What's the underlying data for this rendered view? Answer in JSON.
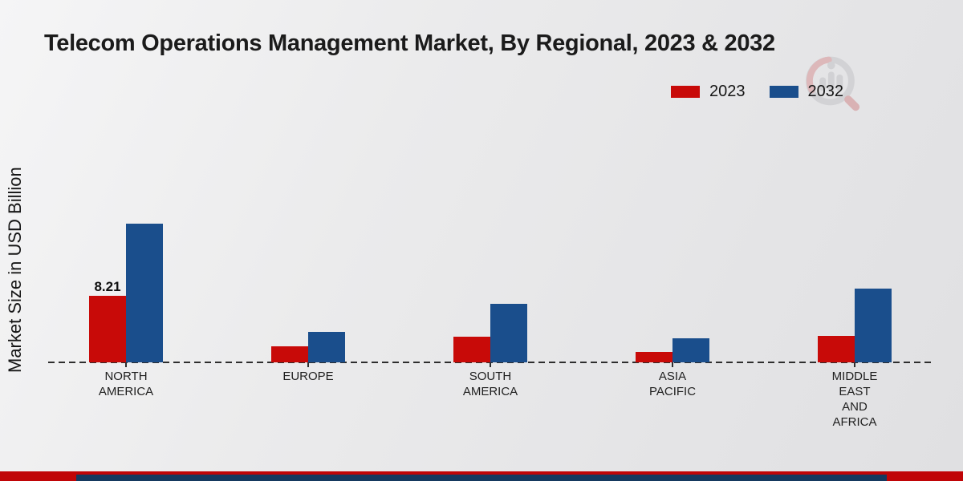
{
  "title": "Telecom Operations Management Market, By Regional, 2023 & 2032",
  "y_axis_label": "Market Size in USD Billion",
  "legend": {
    "items": [
      {
        "label": "2023",
        "color": "#c80a08"
      },
      {
        "label": "2032",
        "color": "#1a4e8c"
      }
    ]
  },
  "icons": {
    "watermark": "magnifier-bar-chart-logo"
  },
  "chart_data": {
    "type": "bar",
    "title": "Telecom Operations Management Market, By Regional, 2023 & 2032",
    "ylabel": "Market Size in USD Billion",
    "xlabel": "",
    "unit": "USD Billion",
    "categories": [
      "NORTH\nAMERICA",
      "EUROPE",
      "SOUTH\nAMERICA",
      "ASIA\nPACIFIC",
      "MIDDLE\nEAST\nAND\nAFRICA"
    ],
    "series": [
      {
        "name": "2023",
        "color": "#c80a08",
        "values": [
          8.21,
          2.0,
          3.2,
          1.3,
          3.3
        ],
        "value_labels": [
          "8.21",
          "",
          "",
          "",
          ""
        ]
      },
      {
        "name": "2032",
        "color": "#1a4e8c",
        "values": [
          17.1,
          3.8,
          7.2,
          3.0,
          9.1
        ],
        "value_labels": [
          "",
          "",
          "",
          "",
          ""
        ]
      }
    ],
    "ylim": [
      0,
      18
    ],
    "grid": false,
    "legend_position": "top-right",
    "baseline_style": "dashed"
  },
  "footer": {
    "red_bar_color": "#c00507",
    "navy_bar_color": "#15395f"
  }
}
